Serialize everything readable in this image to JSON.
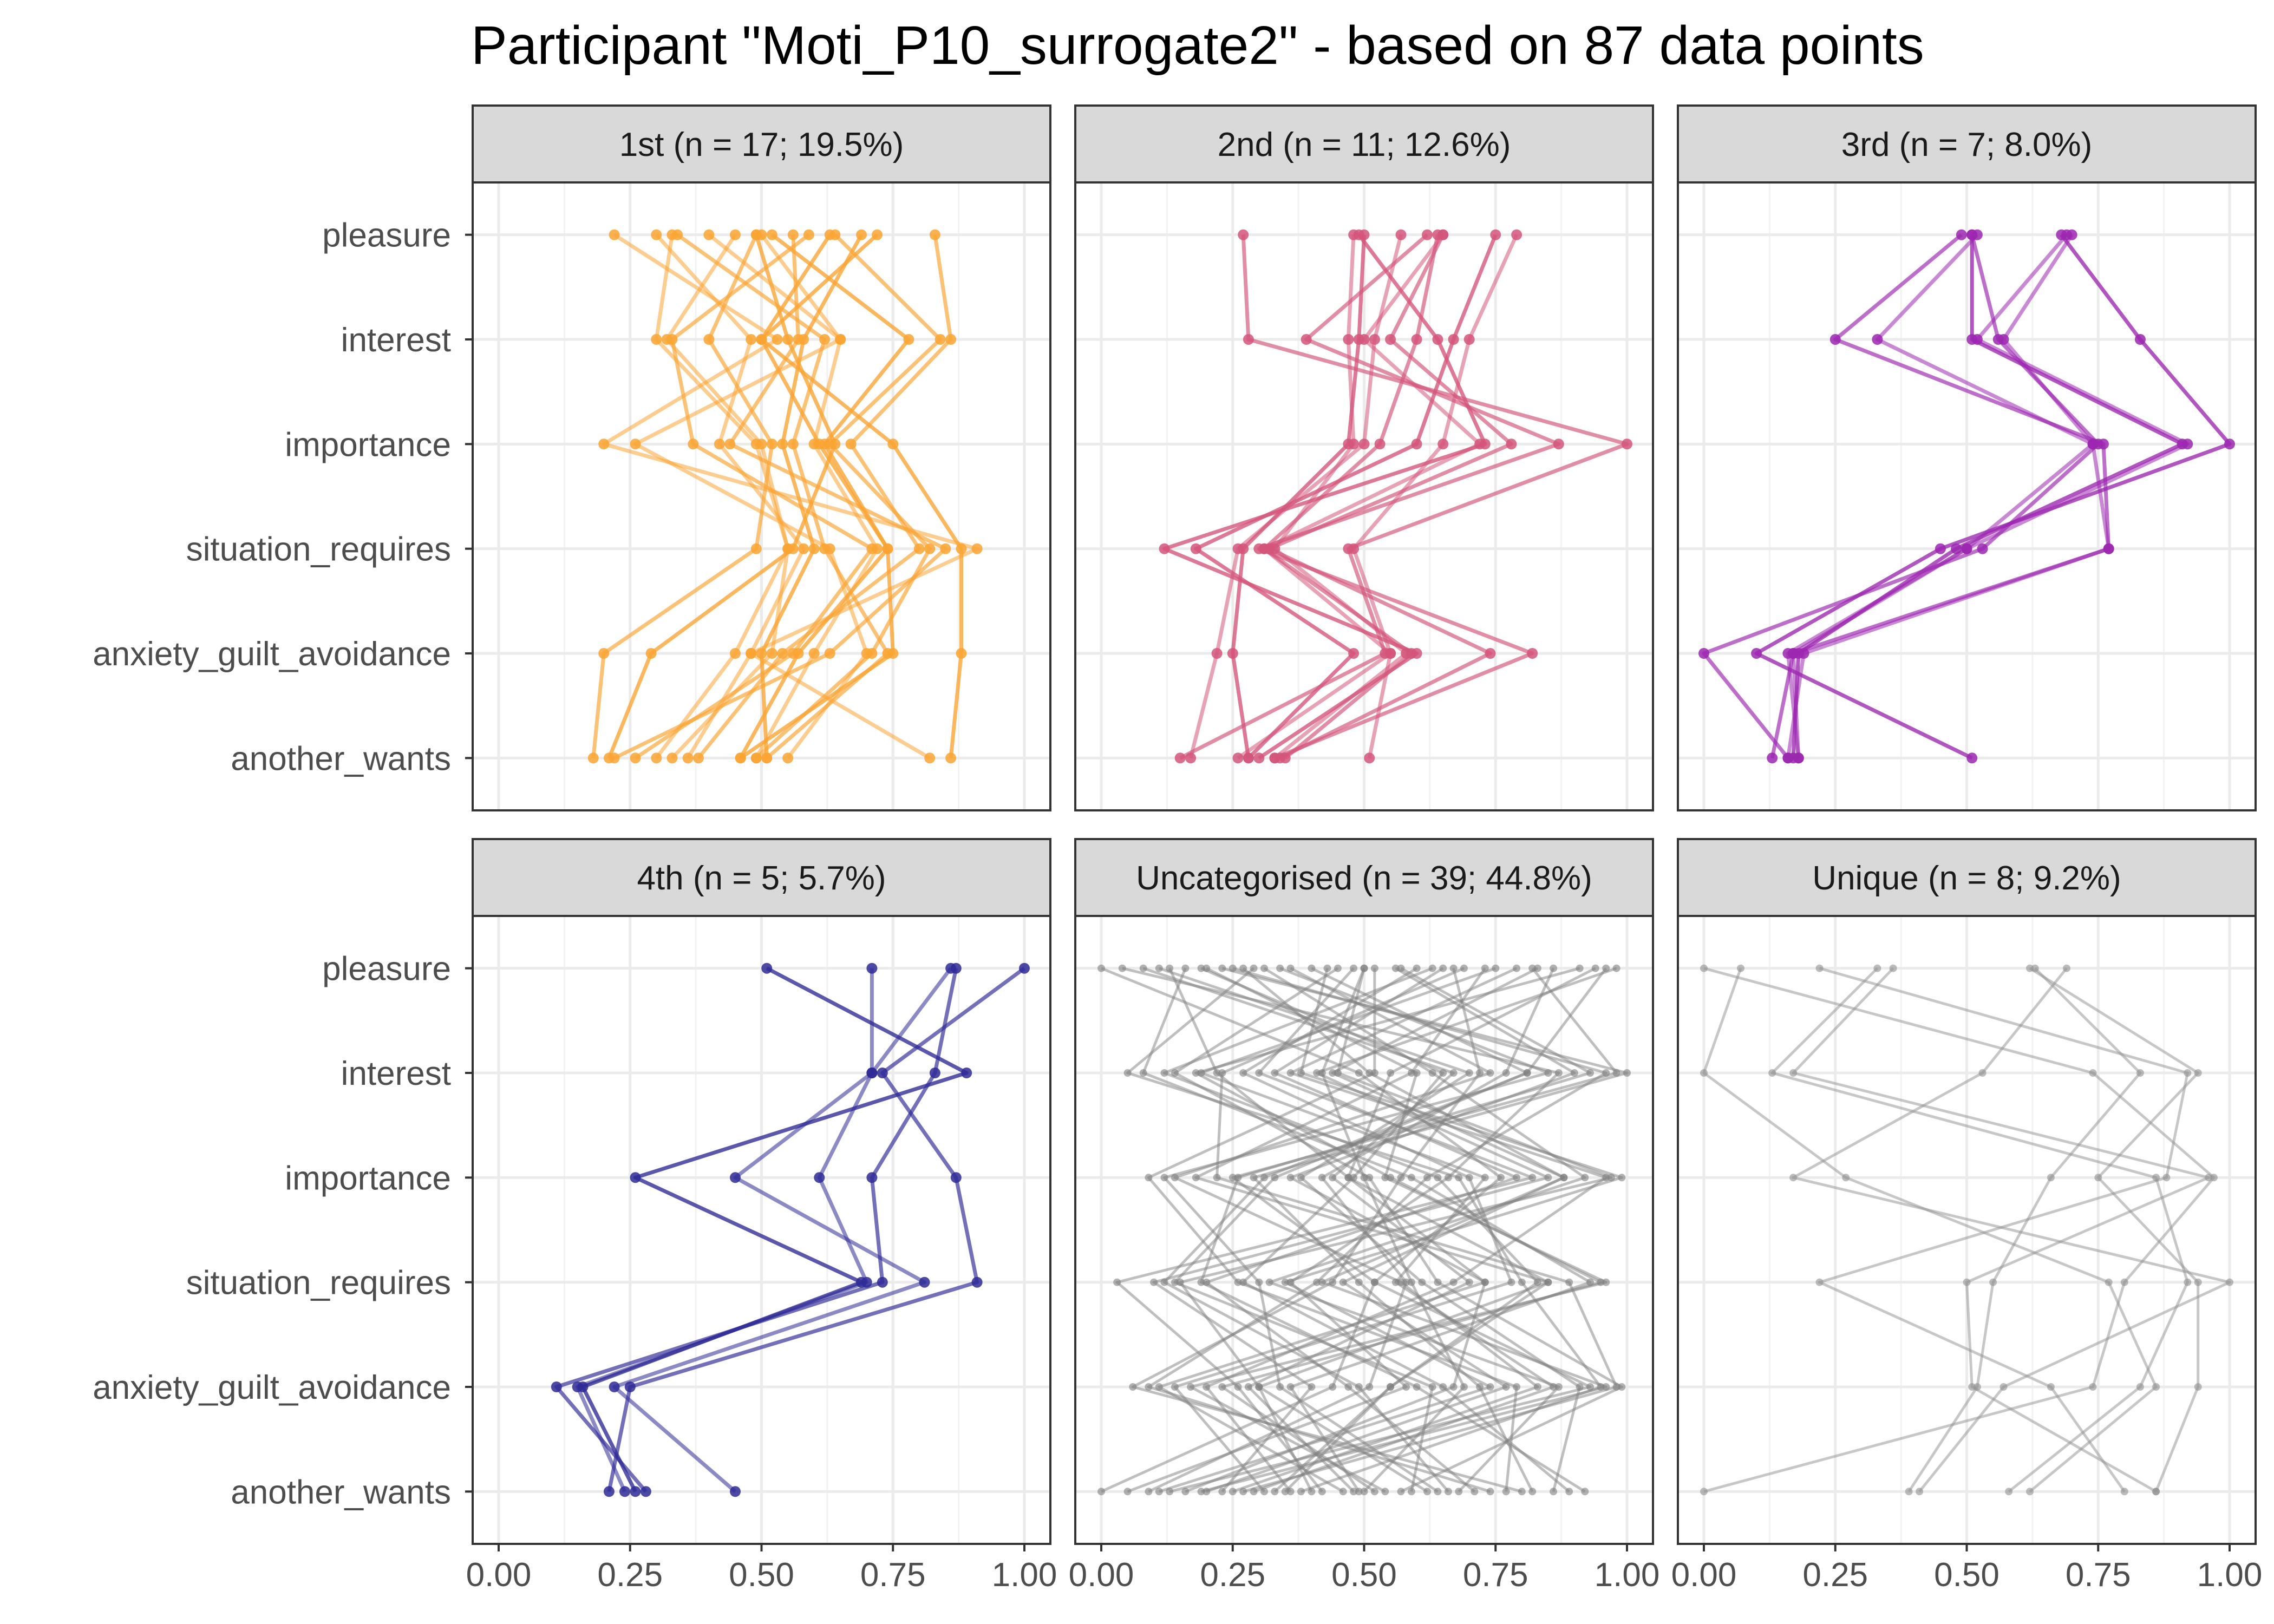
{
  "chart_data": {
    "type": "line",
    "title": "Participant \"Moti_P10_surrogate2\" - based on 87 data points",
    "xlabel": "",
    "ylabel": "",
    "xlim": [
      0,
      1
    ],
    "x_ticks": [
      "0.00",
      "0.25",
      "0.50",
      "0.75",
      "1.00"
    ],
    "categories": [
      "pleasure",
      "interest",
      "importance",
      "situation_requires",
      "anxiety_guilt_avoidance",
      "another_wants"
    ],
    "grid": true,
    "legend": "none",
    "panels": [
      {
        "label": "1st (n = 17; 19.5%)",
        "color": "#F9A433",
        "series": [
          {
            "values": [
              0.33,
              0.3,
              0.49,
              0.55,
              0.52,
              0.33
            ]
          },
          {
            "values": [
              0.49,
              0.4,
              0.52,
              0.49,
              0.2,
              0.18
            ]
          },
          {
            "values": [
              0.63,
              0.5,
              0.61,
              0.74,
              0.57,
              0.46
            ]
          },
          {
            "values": [
              0.5,
              0.65,
              0.6,
              0.72,
              0.6,
              0.49
            ]
          },
          {
            "values": [
              0.64,
              0.84,
              0.63,
              0.82,
              0.71,
              0.49
            ]
          },
          {
            "values": [
              0.69,
              0.58,
              0.54,
              0.6,
              0.5,
              0.51
            ]
          },
          {
            "values": [
              0.45,
              0.32,
              0.5,
              0.55,
              0.45,
              0.3
            ]
          },
          {
            "values": [
              0.34,
              0.62,
              0.56,
              0.62,
              0.74,
              0.51
            ]
          },
          {
            "values": [
              0.49,
              0.55,
              0.64,
              0.56,
              0.29,
              0.21
            ]
          },
          {
            "values": [
              0.4,
              0.65,
              0.26,
              0.63,
              0.7,
              0.55
            ]
          },
          {
            "values": [
              0.83,
              0.86,
              0.67,
              0.8,
              0.54,
              0.38
            ]
          },
          {
            "values": [
              0.52,
              0.78,
              0.62,
              0.74,
              0.75,
              0.46
            ]
          },
          {
            "values": [
              0.3,
              0.48,
              0.42,
              0.58,
              0.48,
              0.36
            ]
          },
          {
            "values": [
              0.59,
              0.33,
              0.37,
              0.71,
              0.56,
              0.26
            ]
          },
          {
            "values": [
              0.72,
              0.5,
              0.75,
              0.88,
              0.88,
              0.86
            ]
          },
          {
            "values": [
              0.22,
              0.53,
              0.2,
              0.91,
              0.48,
              0.82
            ]
          },
          {
            "values": [
              0.56,
              0.57,
              0.44,
              0.85,
              0.63,
              0.22
            ]
          }
        ]
      },
      {
        "label": "2nd (n = 11; 12.6%)",
        "color": "#D4557A",
        "series": [
          {
            "values": [
              0.48,
              0.47,
              0.48,
              0.33,
              0.58,
              0.33
            ]
          },
          {
            "values": [
              0.65,
              0.55,
              0.78,
              0.32,
              0.74,
              0.34
            ]
          },
          {
            "values": [
              0.49,
              0.64,
              0.73,
              0.12,
              0.6,
              0.3
            ]
          },
          {
            "values": [
              0.65,
              0.5,
              0.72,
              0.31,
              0.55,
              0.26
            ]
          },
          {
            "values": [
              0.64,
              0.6,
              0.53,
              0.31,
              0.59,
              0.35
            ]
          },
          {
            "values": [
              0.5,
              0.49,
              0.47,
              0.27,
              0.25,
              0.28
            ]
          },
          {
            "values": [
              0.57,
              0.52,
              0.5,
              0.26,
              0.22,
              0.17
            ]
          },
          {
            "values": [
              0.62,
              0.39,
              0.87,
              0.3,
              0.82,
              0.33
            ]
          },
          {
            "values": [
              0.75,
              0.67,
              0.6,
              0.18,
              0.48,
              0.28
            ]
          },
          {
            "values": [
              0.79,
              0.7,
              0.65,
              0.48,
              0.55,
              0.51
            ]
          },
          {
            "values": [
              0.27,
              0.28,
              1.0,
              0.47,
              0.54,
              0.15
            ]
          }
        ]
      },
      {
        "label": "3rd (n = 7; 8.0%)",
        "color": "#9C27B0",
        "series": [
          {
            "values": [
              0.69,
              0.52,
              0.92,
              0.5,
              0.17,
              0.18
            ]
          },
          {
            "values": [
              0.51,
              0.56,
              0.75,
              0.53,
              0.0,
              0.16
            ]
          },
          {
            "values": [
              0.51,
              0.51,
              0.91,
              0.48,
              0.18,
              0.17
            ]
          },
          {
            "values": [
              0.7,
              0.57,
              0.74,
              0.5,
              0.16,
              0.18
            ]
          },
          {
            "values": [
              0.49,
              0.25,
              0.76,
              0.77,
              0.17,
              0.13
            ]
          },
          {
            "values": [
              0.68,
              0.83,
              1.0,
              0.45,
              0.1,
              0.51
            ]
          },
          {
            "values": [
              0.52,
              0.33,
              0.74,
              0.77,
              0.19,
              0.16
            ]
          }
        ]
      },
      {
        "label": "4th (n = 5; 5.7%)",
        "color": "#2E2A96",
        "series": [
          {
            "values": [
              0.86,
              0.71,
              0.61,
              0.7,
              0.15,
              0.24
            ]
          },
          {
            "values": [
              0.87,
              0.83,
              0.71,
              0.73,
              0.11,
              0.28
            ]
          },
          {
            "values": [
              0.51,
              0.89,
              0.26,
              0.69,
              0.16,
              0.26
            ]
          },
          {
            "values": [
              0.71,
              0.71,
              0.45,
              0.81,
              0.22,
              0.45
            ]
          },
          {
            "values": [
              1.0,
              0.73,
              0.87,
              0.91,
              0.25,
              0.21
            ]
          }
        ]
      },
      {
        "label": "Uncategorised (n = 39; 44.8%)",
        "color": "#7F7F7F",
        "series": [
          {
            "values": [
              0.13,
              0.22,
              0.47,
              0.85,
              0.55,
              0.35
            ]
          },
          {
            "values": [
              0.5,
              0.45,
              0.97,
              0.15,
              0.3,
              0.62
            ]
          },
          {
            "values": [
              0.82,
              0.98,
              0.25,
              0.52,
              0.93,
              0.13
            ]
          },
          {
            "values": [
              0.19,
              0.65,
              0.48,
              0.27,
              0.65,
              0.89
            ]
          },
          {
            "values": [
              0.56,
              0.9,
              0.36,
              0.73,
              0.11,
              0.46
            ]
          },
          {
            "values": [
              0.27,
              0.51,
              0.88,
              0.42,
              0.96,
              0.19
            ]
          },
          {
            "values": [
              0.91,
              0.18,
              0.55,
              0.95,
              0.23,
              0.52
            ]
          },
          {
            "values": [
              0.36,
              0.74,
              0.14,
              0.57,
              0.83,
              0.25
            ]
          },
          {
            "values": [
              0.65,
              0.33,
              0.79,
              0.2,
              0.47,
              0.71
            ]
          },
          {
            "values": [
              0.04,
              0.87,
              0.66,
              0.36,
              0.58,
              0.05
            ]
          },
          {
            "values": [
              0.73,
              0.59,
              0.18,
              0.85,
              0.3,
              0.4
            ]
          },
          {
            "values": [
              0.45,
              0.14,
              0.51,
              0.64,
              0.99,
              0.57
            ]
          },
          {
            "values": [
              0.98,
              0.41,
              0.85,
              0.1,
              0.4,
              0.23
            ]
          },
          {
            "values": [
              0.23,
              1.0,
              0.29,
              0.49,
              0.72,
              0.82
            ]
          },
          {
            "values": [
              0.6,
              0.27,
              0.7,
              0.78,
              0.14,
              0.31
            ]
          },
          {
            "values": [
              0.31,
              0.63,
              0.92,
              0.32,
              0.87,
              0.68
            ]
          },
          {
            "values": [
              0.86,
              0.77,
              0.42,
              0.58,
              0.51,
              0.09
            ]
          },
          {
            "values": [
              0.16,
              0.08,
              0.59,
              0.93,
              0.36,
              0.49
            ]
          },
          {
            "values": [
              0.52,
              0.52,
              0.09,
              0.26,
              0.79,
              0.77
            ]
          },
          {
            "values": [
              0.79,
              0.36,
              0.96,
              0.67,
              0.2,
              0.36
            ]
          },
          {
            "values": [
              0.4,
              0.81,
              0.33,
              0.14,
              0.63,
              0.59
            ]
          },
          {
            "values": [
              0.0,
              0.49,
              0.76,
              0.52,
              0.44,
              0.0
            ]
          },
          {
            "values": [
              0.69,
              0.23,
              0.22,
              0.89,
              0.98,
              0.27
            ]
          },
          {
            "values": [
              0.25,
              0.96,
              0.62,
              0.41,
              0.09,
              0.74
            ]
          },
          {
            "values": [
              0.94,
              0.55,
              0.47,
              0.73,
              0.67,
              0.16
            ]
          },
          {
            "values": [
              0.48,
              0.3,
              0.82,
              0.03,
              0.26,
              0.42
            ]
          },
          {
            "values": [
              0.11,
              0.7,
              0.38,
              0.61,
              0.91,
              0.86
            ]
          },
          {
            "values": [
              0.63,
              0.12,
              0.64,
              0.83,
              0.55,
              0.33
            ]
          },
          {
            "values": [
              0.34,
              0.85,
              0.12,
              0.3,
              0.34,
              0.64
            ]
          },
          {
            "values": [
              0.83,
              0.44,
              0.88,
              0.46,
              0.77,
              0.2
            ]
          },
          {
            "values": [
              0.2,
              0.6,
              0.54,
              0.96,
              0.17,
              0.54
            ]
          },
          {
            "values": [
              0.57,
              0.93,
              0.26,
              0.19,
              0.6,
              0.92
            ]
          },
          {
            "values": [
              0.75,
              0.19,
              0.73,
              0.56,
              0.86,
              0.29
            ]
          },
          {
            "values": [
              0.08,
              0.67,
              0.44,
              0.7,
              0.28,
              0.48
            ]
          },
          {
            "values": [
              0.43,
              0.38,
              0.99,
              0.35,
              0.74,
              0.11
            ]
          },
          {
            "values": [
              0.96,
              0.81,
              0.31,
              0.12,
              0.49,
              0.66
            ]
          },
          {
            "values": [
              0.29,
              0.05,
              0.68,
              0.8,
              0.95,
              0.38
            ]
          },
          {
            "values": [
              0.67,
              0.72,
              0.57,
              0.44,
              0.06,
              0.8
            ]
          },
          {
            "values": [
              0.5,
              0.42,
              0.5,
              0.59,
              0.69,
              0.5
            ]
          }
        ]
      },
      {
        "label": "Unique (n = 8; 9.2%)",
        "color": "#8F8F8F",
        "series": [
          {
            "values": [
              0.0,
              0.74,
              0.97,
              0.8,
              0.74,
              0.0
            ]
          },
          {
            "values": [
              0.07,
              0.0,
              0.27,
              0.77,
              0.86,
              0.62
            ]
          },
          {
            "values": [
              0.22,
              0.92,
              0.88,
              0.22,
              0.66,
              0.8
            ]
          },
          {
            "values": [
              0.36,
              0.17,
              0.96,
              0.5,
              0.51,
              0.86
            ]
          },
          {
            "values": [
              0.33,
              0.13,
              0.86,
              0.92,
              0.83,
              0.58
            ]
          },
          {
            "values": [
              0.62,
              0.94,
              0.75,
              0.94,
              0.94,
              0.86
            ]
          },
          {
            "values": [
              0.63,
              0.83,
              0.66,
              0.55,
              0.52,
              0.39
            ]
          },
          {
            "values": [
              0.69,
              0.53,
              0.17,
              1.0,
              0.57,
              0.41
            ]
          }
        ]
      }
    ]
  }
}
